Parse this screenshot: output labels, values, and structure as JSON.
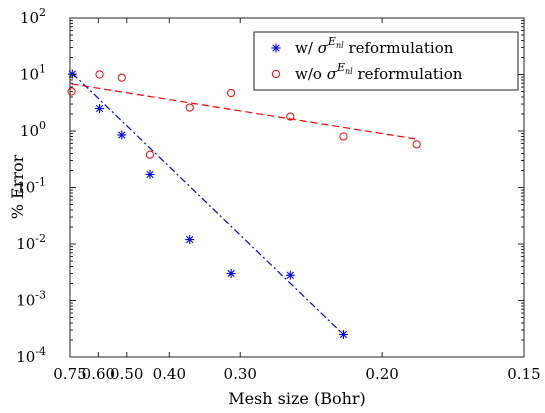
{
  "chart_data": {
    "type": "scatter",
    "xlabel": "Mesh size (Bohr)",
    "ylabel": "% Error",
    "x_scale": "reciprocal",
    "y_scale": "log",
    "xlim": [
      0.75,
      0.15
    ],
    "ylim": [
      0.0001,
      100
    ],
    "xticks": [
      {
        "value": 0.75,
        "label": "0.75"
      },
      {
        "value": 0.6,
        "label": "0.60"
      },
      {
        "value": 0.5,
        "label": "0.50"
      },
      {
        "value": 0.4,
        "label": "0.40"
      },
      {
        "value": 0.3,
        "label": "0.30"
      },
      {
        "value": 0.2,
        "label": "0.20"
      },
      {
        "value": 0.15,
        "label": "0.15"
      }
    ],
    "yticks": [
      {
        "value": 0.0001,
        "base": "10",
        "exp": "-4"
      },
      {
        "value": 0.001,
        "base": "10",
        "exp": "-3"
      },
      {
        "value": 0.01,
        "base": "10",
        "exp": "-2"
      },
      {
        "value": 0.1,
        "base": "10",
        "exp": "-1"
      },
      {
        "value": 1,
        "base": "10",
        "exp": "0"
      },
      {
        "value": 10,
        "base": "10",
        "exp": "1"
      },
      {
        "value": 100,
        "base": "10",
        "exp": "2"
      }
    ],
    "grid": false,
    "legend_position": "top-right",
    "series": [
      {
        "name": "w/ σ^{E_nl} reformulation",
        "legend_prefix": "w/ ",
        "legend_sigma": "σ",
        "legend_sup": "E",
        "legend_sub": "nl",
        "legend_suffix": " reformulation",
        "marker": "asterisk",
        "color": "#0000ff",
        "x": [
          0.735,
          0.595,
          0.515,
          0.44,
          0.365,
          0.31,
          0.255,
          0.22
        ],
        "y": [
          10.2,
          2.5,
          0.85,
          0.17,
          0.012,
          0.003,
          0.0028,
          0.00025
        ],
        "fit": {
          "style": "dash-dot",
          "x": [
            0.735,
            0.22
          ],
          "y": [
            10.5,
            0.00025
          ]
        }
      },
      {
        "name": "w/o σ^{E_nl} reformulation",
        "legend_prefix": "w/o ",
        "legend_sigma": "σ",
        "legend_sup": "E",
        "legend_sub": "nl",
        "legend_suffix": " reformulation",
        "marker": "circle",
        "color": "#ff0000",
        "x": [
          0.74,
          0.595,
          0.515,
          0.44,
          0.365,
          0.31,
          0.255,
          0.22,
          0.185
        ],
        "y": [
          5.0,
          10.0,
          8.8,
          0.38,
          2.6,
          4.7,
          1.8,
          0.8,
          0.58
        ],
        "fit": {
          "style": "dashed",
          "x": [
            0.74,
            0.185
          ],
          "y": [
            6.8,
            0.72
          ]
        }
      }
    ]
  }
}
